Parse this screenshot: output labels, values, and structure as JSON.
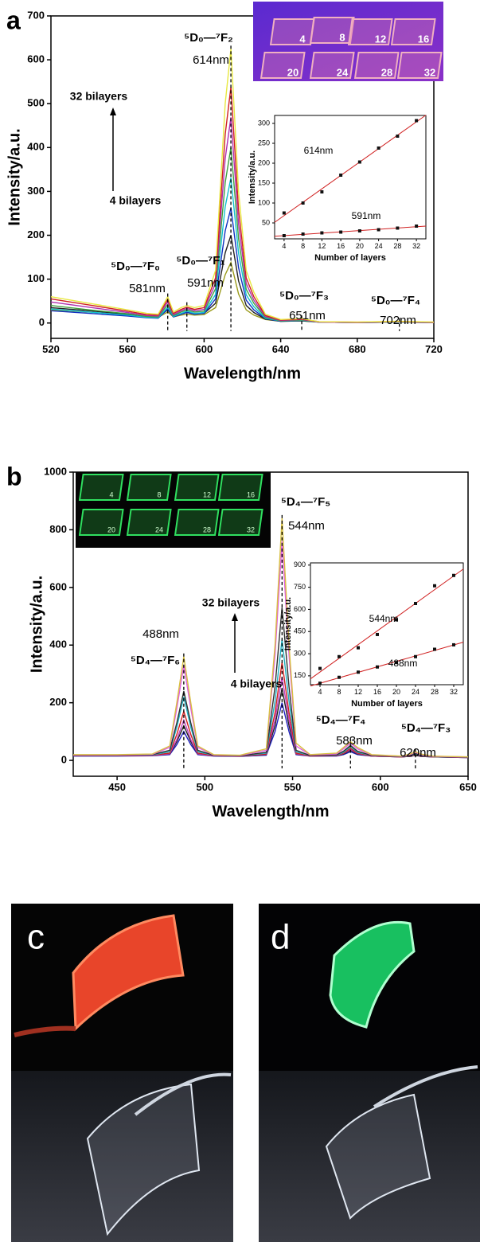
{
  "chart_data": [
    {
      "type": "line",
      "panel": "a",
      "xlabel": "Wavelength/nm",
      "ylabel": "Intensity/a.u.",
      "x": [
        520,
        540,
        560,
        570,
        576,
        581,
        584,
        588,
        591,
        595,
        600,
        606,
        611,
        614,
        618,
        622,
        626,
        632,
        640,
        651,
        660,
        680,
        702,
        720
      ],
      "series": [
        {
          "color": "#9a9a1a",
          "values": [
            30,
            25,
            18,
            14,
            13,
            25,
            14,
            18,
            20,
            18,
            19,
            35,
            110,
            138,
            66,
            30,
            18,
            8,
            4,
            5,
            2,
            1,
            2,
            1
          ]
        },
        {
          "color": "#222222",
          "values": [
            35,
            28,
            20,
            15,
            14,
            30,
            16,
            21,
            24,
            21,
            22,
            45,
            160,
            200,
            96,
            40,
            24,
            9,
            4,
            5,
            2,
            1,
            2,
            1
          ]
        },
        {
          "color": "#1030c0",
          "values": [
            28,
            22,
            16,
            12,
            11,
            32,
            14,
            20,
            24,
            20,
            22,
            55,
            210,
            262,
            126,
            52,
            30,
            10,
            4,
            6,
            2,
            1,
            2,
            1
          ]
        },
        {
          "color": "#10c0d0",
          "values": [
            32,
            25,
            18,
            13,
            12,
            36,
            15,
            22,
            27,
            22,
            24,
            65,
            265,
            331,
            159,
            64,
            37,
            11,
            5,
            6,
            2,
            1,
            2,
            1
          ]
        },
        {
          "color": "#40a040",
          "values": [
            40,
            30,
            21,
            15,
            14,
            42,
            17,
            25,
            30,
            25,
            27,
            78,
            320,
            400,
            192,
            77,
            45,
            13,
            5,
            7,
            2,
            1,
            3,
            1
          ]
        },
        {
          "color": "#b030b0",
          "values": [
            48,
            36,
            24,
            17,
            16,
            48,
            19,
            28,
            33,
            28,
            31,
            90,
            375,
            469,
            225,
            90,
            52,
            15,
            6,
            8,
            2,
            1,
            3,
            1
          ]
        },
        {
          "color": "#d02020",
          "values": [
            55,
            41,
            27,
            19,
            18,
            54,
            22,
            31,
            36,
            31,
            35,
            103,
            430,
            538,
            258,
            103,
            60,
            17,
            7,
            9,
            3,
            2,
            3,
            2
          ]
        },
        {
          "color": "#e8e840",
          "values": [
            60,
            45,
            30,
            22,
            20,
            60,
            25,
            35,
            40,
            35,
            40,
            120,
            500,
            625,
            300,
            120,
            70,
            20,
            8,
            10,
            3,
            2,
            4,
            2
          ]
        }
      ],
      "xlim": [
        520,
        720
      ],
      "ylim": [
        -35,
        700
      ],
      "xticks": [
        520,
        560,
        600,
        640,
        680,
        720
      ],
      "yticks": [
        0,
        100,
        200,
        300,
        400,
        500,
        600,
        700
      ],
      "peak_lines": [
        581,
        591,
        614,
        651,
        702
      ],
      "annotations": [
        "⁵D₀—⁷F₂",
        "614nm",
        "⁵D₀—⁷F₀",
        "581nm",
        "⁵D₀—⁷F₁",
        "591nm",
        "⁵D₀—⁷F₃",
        "651nm",
        "⁵D₀—⁷F₄",
        "702nm",
        "32 bilayers",
        "4 bilayers"
      ]
    },
    {
      "type": "scatter",
      "xlabel": "Number of layers",
      "ylabel": "Intensity/a.u.",
      "x": [
        4,
        8,
        12,
        16,
        20,
        24,
        28,
        32
      ],
      "series": [
        {
          "color": "#d02020",
          "values": [
            75,
            100,
            128,
            170,
            203,
            238,
            268,
            307
          ]
        },
        {
          "color": "#d02020",
          "values": [
            18,
            22,
            25,
            27,
            30,
            33,
            37,
            42
          ]
        }
      ],
      "xlim": [
        2,
        34
      ],
      "ylim": [
        10,
        320
      ],
      "xticks": [
        4,
        8,
        12,
        16,
        20,
        24,
        28,
        32
      ],
      "yticks": [
        50,
        100,
        150,
        200,
        250,
        300
      ],
      "annotations": [
        "614nm",
        "591nm"
      ]
    },
    {
      "type": "line",
      "panel": "b",
      "xlabel": "Wavelength/nm",
      "ylabel": "Intensity/a.u.",
      "x": [
        425,
        450,
        470,
        480,
        484,
        488,
        492,
        496,
        505,
        520,
        535,
        540,
        544,
        548,
        552,
        560,
        575,
        579,
        583,
        587,
        595,
        612,
        617,
        620,
        623,
        630,
        650
      ],
      "series": [
        {
          "color": "#2020c0",
          "values": [
            15,
            15,
            16,
            20,
            55,
            100,
            55,
            20,
            15,
            14,
            18,
            100,
            200,
            100,
            20,
            15,
            15,
            20,
            30,
            20,
            15,
            12,
            14,
            18,
            14,
            12,
            10
          ]
        },
        {
          "color": "#202020",
          "values": [
            16,
            16,
            17,
            22,
            65,
            120,
            65,
            22,
            16,
            15,
            20,
            120,
            250,
            120,
            22,
            15,
            16,
            22,
            35,
            22,
            15,
            12,
            14,
            18,
            14,
            12,
            10
          ]
        },
        {
          "color": "#c040c0",
          "values": [
            16,
            16,
            17,
            23,
            72,
            140,
            72,
            23,
            16,
            15,
            21,
            140,
            290,
            140,
            23,
            15,
            16,
            24,
            38,
            24,
            15,
            12,
            15,
            19,
            15,
            12,
            10
          ]
        },
        {
          "color": "#d02020",
          "values": [
            17,
            17,
            18,
            25,
            90,
            170,
            90,
            25,
            17,
            15,
            22,
            165,
            340,
            165,
            25,
            16,
            17,
            25,
            42,
            25,
            16,
            12,
            15,
            20,
            15,
            12,
            11
          ]
        },
        {
          "color": "#20b0c0",
          "values": [
            18,
            18,
            19,
            30,
            115,
            220,
            115,
            30,
            18,
            16,
            25,
            205,
            420,
            205,
            30,
            17,
            18,
            28,
            48,
            28,
            17,
            13,
            16,
            22,
            16,
            13,
            11
          ]
        },
        {
          "color": "#303030",
          "values": [
            18,
            18,
            20,
            35,
            130,
            240,
            130,
            35,
            18,
            16,
            28,
            255,
            530,
            255,
            35,
            17,
            19,
            32,
            52,
            32,
            17,
            13,
            17,
            24,
            17,
            13,
            11
          ]
        },
        {
          "color": "#e060e0",
          "values": [
            19,
            19,
            21,
            45,
            180,
            330,
            180,
            45,
            19,
            17,
            35,
            365,
            760,
            365,
            50,
            19,
            22,
            40,
            60,
            40,
            19,
            14,
            20,
            28,
            20,
            14,
            12
          ]
        },
        {
          "color": "#d8c040",
          "values": [
            20,
            20,
            22,
            50,
            200,
            360,
            200,
            50,
            20,
            18,
            40,
            400,
            840,
            400,
            60,
            20,
            25,
            45,
            65,
            45,
            20,
            15,
            22,
            30,
            22,
            15,
            12
          ]
        }
      ],
      "xlim": [
        425,
        650
      ],
      "ylim": [
        -55,
        1000
      ],
      "xticks": [
        450,
        500,
        550,
        600,
        650
      ],
      "yticks": [
        0,
        200,
        400,
        600,
        800,
        1000
      ],
      "peak_lines": [
        488,
        544,
        583,
        620
      ],
      "annotations": [
        "⁵D₄—⁷F₅",
        "544nm",
        "488nm",
        "⁵D₄—⁷F₆",
        "32 bilayers",
        "4 bilayers",
        "⁵D₄—⁷F₄",
        "583nm",
        "⁵D₄—⁷F₃",
        "620nm"
      ]
    },
    {
      "type": "scatter",
      "xlabel": "Number of layers",
      "ylabel": "Intensity/a.u.",
      "x": [
        4,
        8,
        12,
        16,
        20,
        24,
        28,
        32
      ],
      "series": [
        {
          "color": "#d02020",
          "values": [
            200,
            280,
            340,
            430,
            530,
            640,
            760,
            830
          ]
        },
        {
          "color": "#d02020",
          "values": [
            100,
            140,
            175,
            210,
            240,
            280,
            330,
            360
          ]
        }
      ],
      "xlim": [
        2,
        34
      ],
      "ylim": [
        90,
        915
      ],
      "xticks": [
        4,
        8,
        12,
        16,
        20,
        24,
        28,
        32
      ],
      "yticks": [
        150,
        300,
        450,
        600,
        750,
        900
      ],
      "annotations": [
        "544nm",
        "488nm"
      ]
    }
  ],
  "photos": {
    "a_inset": [
      "4",
      "8",
      "12",
      "16",
      "20",
      "24",
      "28",
      "32"
    ],
    "b_inset": [
      "4",
      "8",
      "12",
      "16",
      "20",
      "24",
      "28",
      "32"
    ],
    "c": "c",
    "d": "d"
  }
}
